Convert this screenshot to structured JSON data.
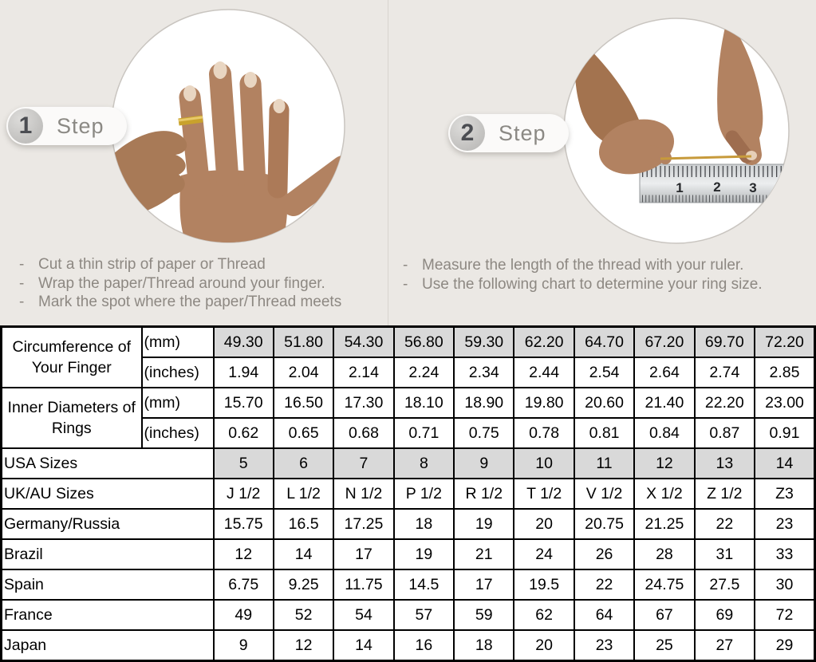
{
  "page": {
    "background": "#ebe8e4"
  },
  "colors": {
    "table_shaded_cell": "#d9d9d9",
    "table_border": "#000000",
    "instruction_text": "#8d8882",
    "badge_text": "#8b8984",
    "skin_tone": "#b28261",
    "gold_thread": "#c79a3b"
  },
  "steps": [
    {
      "number": "1",
      "label": "Step",
      "instructions": [
        "Cut a thin strip of paper or Thread",
        "Wrap the paper/Thread around your finger.",
        "Mark the spot where the paper/Thread meets"
      ]
    },
    {
      "number": "2",
      "label": "Step",
      "instructions": [
        "Measure the length of the thread with your ruler.",
        "Use the following chart to determine your ring size."
      ],
      "ruler_numbers": [
        "1",
        "2",
        "3"
      ]
    }
  ],
  "table": {
    "rows": [
      {
        "group": "Circumference of Your Finger",
        "rowspan": 2,
        "unit": "(mm)",
        "shaded": true,
        "values": [
          "49.30",
          "51.80",
          "54.30",
          "56.80",
          "59.30",
          "62.20",
          "64.70",
          "67.20",
          "69.70",
          "72.20"
        ]
      },
      {
        "unit": "(inches)",
        "shaded": false,
        "values": [
          "1.94",
          "2.04",
          "2.14",
          "2.24",
          "2.34",
          "2.44",
          "2.54",
          "2.64",
          "2.74",
          "2.85"
        ]
      },
      {
        "group": "Inner Diameters of Rings",
        "rowspan": 2,
        "unit": "(mm)",
        "shaded": false,
        "values": [
          "15.70",
          "16.50",
          "17.30",
          "18.10",
          "18.90",
          "19.80",
          "20.60",
          "21.40",
          "22.20",
          "23.00"
        ]
      },
      {
        "unit": "(inches)",
        "shaded": false,
        "values": [
          "0.62",
          "0.65",
          "0.68",
          "0.71",
          "0.75",
          "0.78",
          "0.81",
          "0.84",
          "0.87",
          "0.91"
        ]
      },
      {
        "label": "USA Sizes",
        "shaded": true,
        "values": [
          "5",
          "6",
          "7",
          "8",
          "9",
          "10",
          "11",
          "12",
          "13",
          "14"
        ]
      },
      {
        "label": "UK/AU Sizes",
        "shaded": false,
        "values": [
          "J 1/2",
          "L 1/2",
          "N 1/2",
          "P 1/2",
          "R 1/2",
          "T 1/2",
          "V 1/2",
          "X 1/2",
          "Z 1/2",
          "Z3"
        ]
      },
      {
        "label": "Germany/Russia",
        "shaded": false,
        "values": [
          "15.75",
          "16.5",
          "17.25",
          "18",
          "19",
          "20",
          "20.75",
          "21.25",
          "22",
          "23"
        ]
      },
      {
        "label": "Brazil",
        "shaded": false,
        "values": [
          "12",
          "14",
          "17",
          "19",
          "21",
          "24",
          "26",
          "28",
          "31",
          "33"
        ]
      },
      {
        "label": "Spain",
        "shaded": false,
        "values": [
          "6.75",
          "9.25",
          "11.75",
          "14.5",
          "17",
          "19.5",
          "22",
          "24.75",
          "27.5",
          "30"
        ]
      },
      {
        "label": "France",
        "shaded": false,
        "values": [
          "49",
          "52",
          "54",
          "57",
          "59",
          "62",
          "64",
          "67",
          "69",
          "72"
        ]
      },
      {
        "label": "Japan",
        "shaded": false,
        "values": [
          "9",
          "12",
          "14",
          "16",
          "18",
          "20",
          "23",
          "25",
          "27",
          "29"
        ]
      }
    ]
  }
}
